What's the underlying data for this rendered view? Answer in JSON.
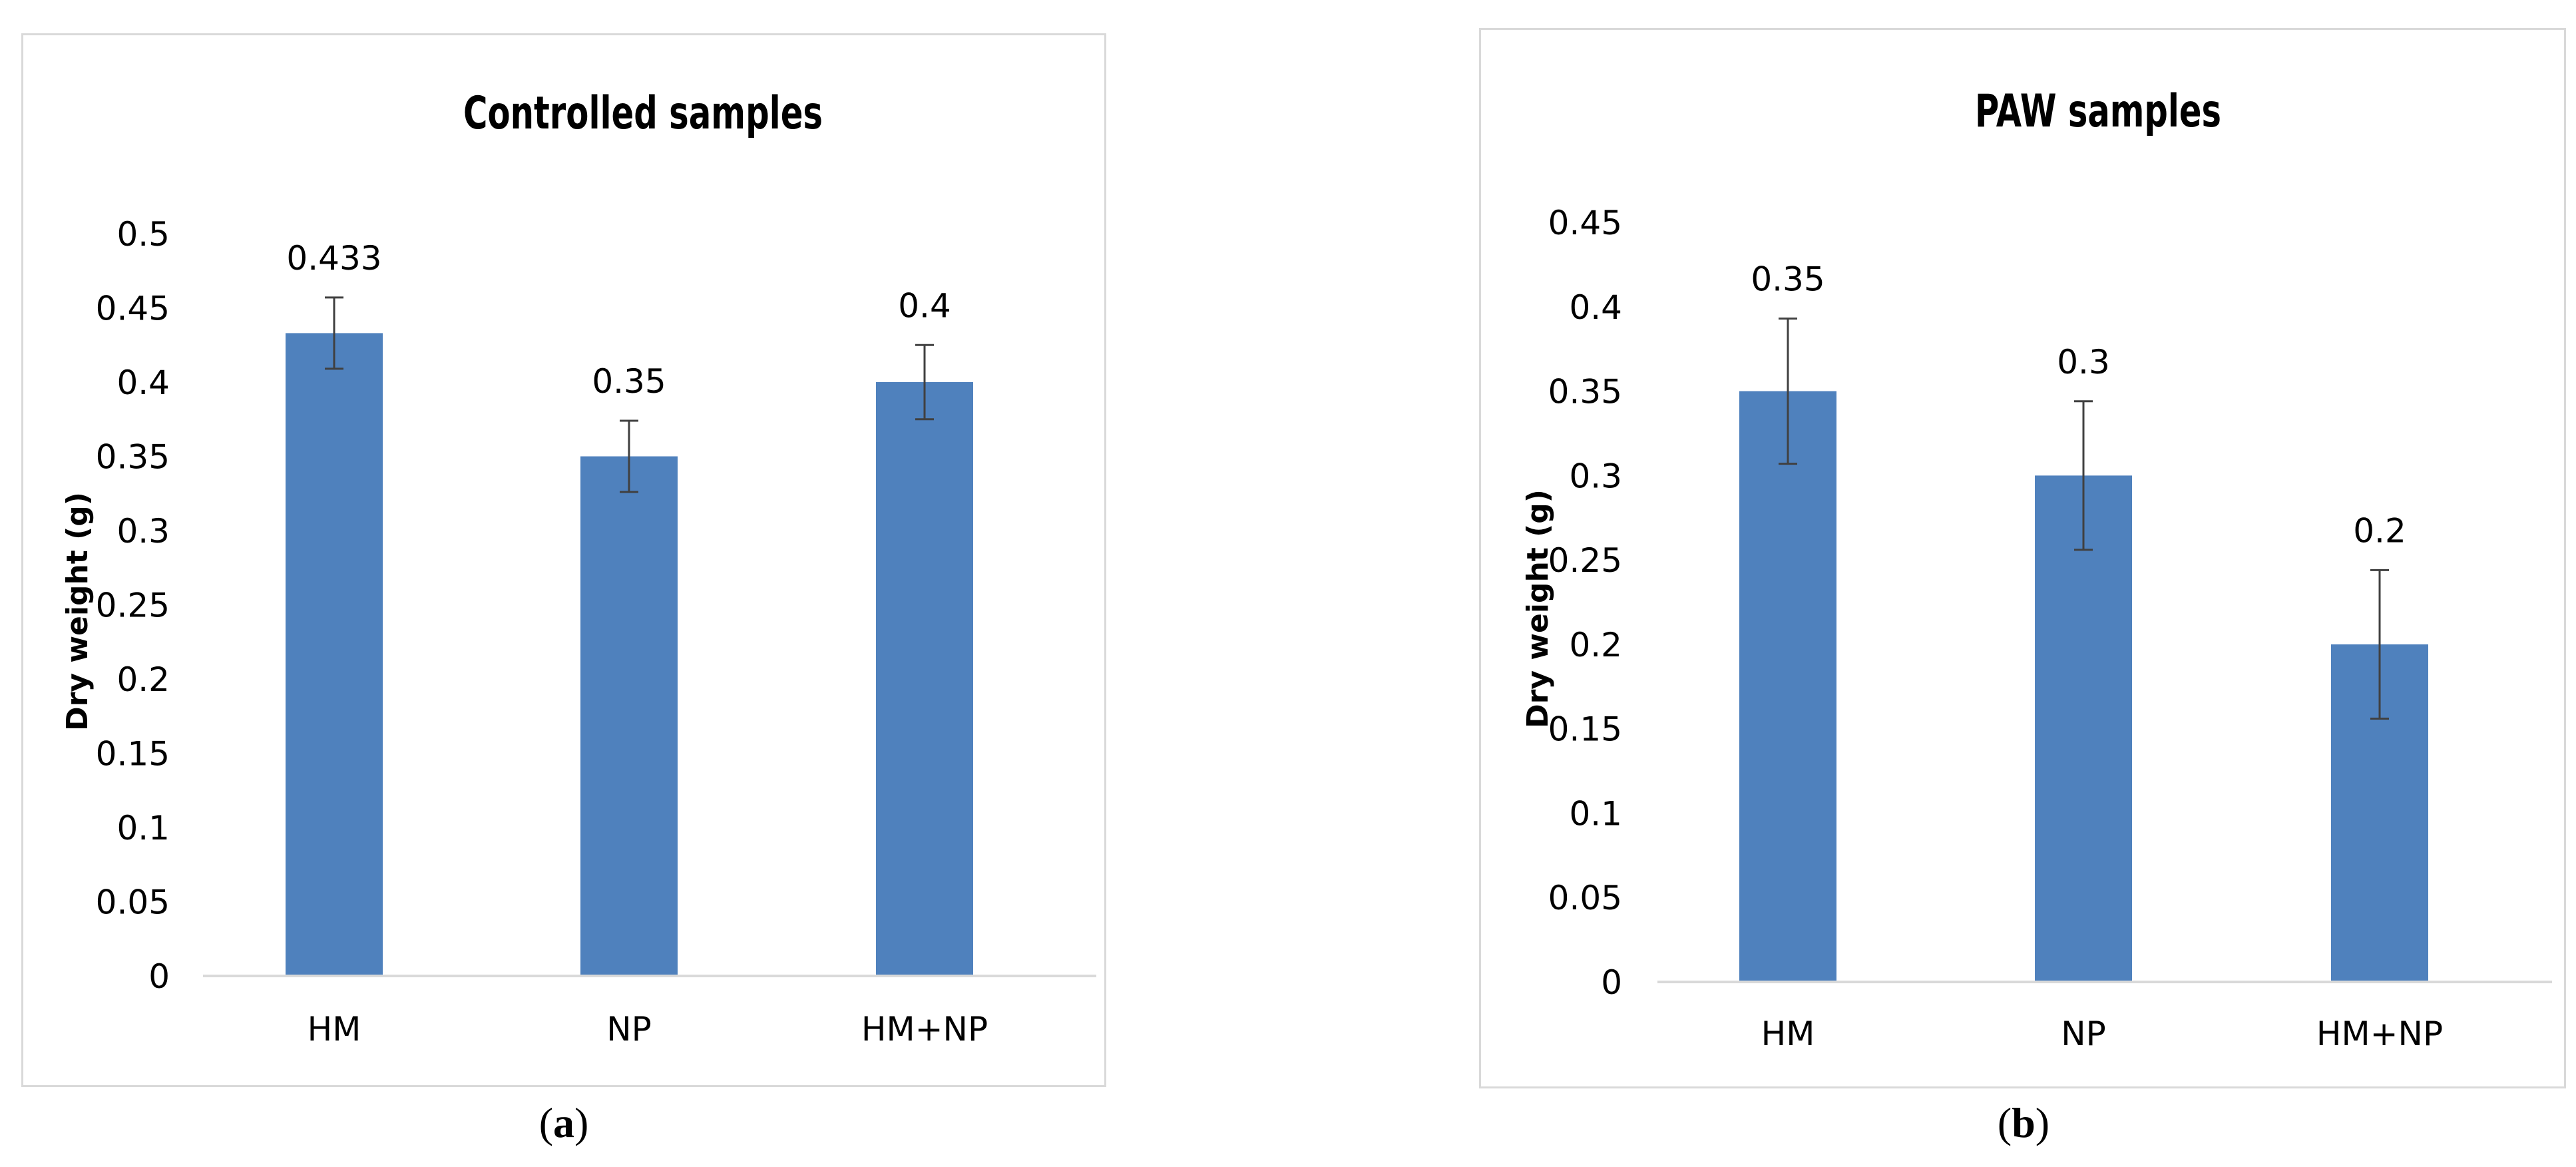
{
  "colors": {
    "bar": "#4F81BD",
    "axis": "#d9d9d9",
    "text": "#000000",
    "error_bar": "#404040",
    "frame": "#d9d9d9"
  },
  "chart_data": [
    {
      "type": "bar",
      "title": "Controlled samples",
      "xlabel": "",
      "ylabel": "Dry weight (g)",
      "categories": [
        "HM",
        "NP",
        "HM+NP"
      ],
      "values": [
        0.433,
        0.35,
        0.4
      ],
      "value_labels": [
        "0.433",
        "0.35",
        "0.4"
      ],
      "error": [
        0.024,
        0.024,
        0.025
      ],
      "ylim": [
        0,
        0.5
      ],
      "yticks": [
        0,
        0.05,
        0.1,
        0.15,
        0.2,
        0.25,
        0.3,
        0.35,
        0.4,
        0.45,
        0.5
      ],
      "ytick_labels": [
        "0",
        "0.05",
        "0.1",
        "0.15",
        "0.2",
        "0.25",
        "0.3",
        "0.35",
        "0.4",
        "0.45",
        "0.5"
      ],
      "grid": false,
      "legend": "none",
      "sublabel_paren_open": "(",
      "sublabel_letter": "a",
      "sublabel_paren_close": ")"
    },
    {
      "type": "bar",
      "title": "PAW samples",
      "xlabel": "",
      "ylabel": "Dry weight (g)",
      "categories": [
        "HM",
        "NP",
        "HM+NP"
      ],
      "values": [
        0.35,
        0.3,
        0.2
      ],
      "value_labels": [
        "0.35",
        "0.3",
        "0.2"
      ],
      "error": [
        0.043,
        0.044,
        0.044
      ],
      "ylim": [
        0,
        0.45
      ],
      "yticks": [
        0,
        0.05,
        0.1,
        0.15,
        0.2,
        0.25,
        0.3,
        0.35,
        0.4,
        0.45
      ],
      "ytick_labels": [
        "0",
        "0.05",
        "0.1",
        "0.15",
        "0.2",
        "0.25",
        "0.3",
        "0.35",
        "0.4",
        "0.45"
      ],
      "grid": false,
      "legend": "none",
      "sublabel_paren_open": "(",
      "sublabel_letter": "b",
      "sublabel_paren_close": ")"
    }
  ]
}
